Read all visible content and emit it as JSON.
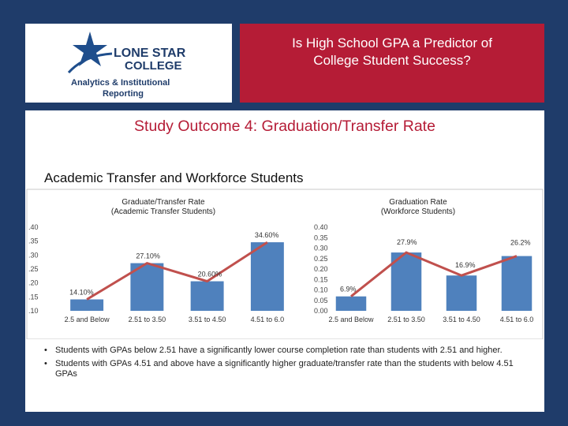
{
  "logo": {
    "name_line1": "LONE STAR",
    "name_line2": "COLLEGE",
    "dept_line1": "Analytics & Institutional",
    "dept_line2": "Reporting"
  },
  "header": {
    "title_line1": "Is High School GPA a Predictor of",
    "title_line2": "College Student Success?"
  },
  "subtitle": "Study Outcome 4: Graduation/Transfer Rate",
  "section_title": "Academic Transfer and Workforce Students",
  "colors": {
    "bar": "#4f81bd",
    "line": "#c0504d",
    "header_red": "#b51c36",
    "background": "#1f3c6a"
  },
  "chart_data": [
    {
      "type": "bar",
      "title_line1": "Graduate/Transfer Rate",
      "title_line2": "(Academic Transfer Students)",
      "categories": [
        "2.5 and Below",
        "2.51 to 3.50",
        "3.51 to 4.50",
        "4.51 to 6.0"
      ],
      "values": [
        0.141,
        0.271,
        0.206,
        0.346
      ],
      "data_labels": [
        "14.10%",
        "27.10%",
        "20.60%",
        "34.60%"
      ],
      "overlay": "line",
      "y_ticks": [
        ".40",
        ".35",
        ".30",
        ".25",
        ".20",
        ".15",
        ".10"
      ],
      "ylim": [
        0.1,
        0.4
      ],
      "grid": false
    },
    {
      "type": "bar",
      "title_line1": "Graduation Rate",
      "title_line2": "(Workforce Students)",
      "categories": [
        "2.5 and Below",
        "2.51 to 3.50",
        "3.51 to 4.50",
        "4.51 to 6.0"
      ],
      "values": [
        0.069,
        0.279,
        0.169,
        0.262
      ],
      "data_labels": [
        "6.9%",
        "27.9%",
        "16.9%",
        "26.2%"
      ],
      "overlay": "line",
      "y_ticks": [
        "0.40",
        "0.35",
        "0.30",
        "0.25",
        "0.20",
        "0.15",
        "0.10",
        "0.05",
        "0.00"
      ],
      "ylim": [
        0.0,
        0.4
      ],
      "grid": false
    }
  ],
  "bullets": [
    "Students with GPAs below 2.51 have a significantly lower course completion rate than students with 2.51 and higher.",
    "Students with GPAs 4.51 and above have a significantly higher graduate/transfer rate than the students with below 4.51 GPAs"
  ]
}
